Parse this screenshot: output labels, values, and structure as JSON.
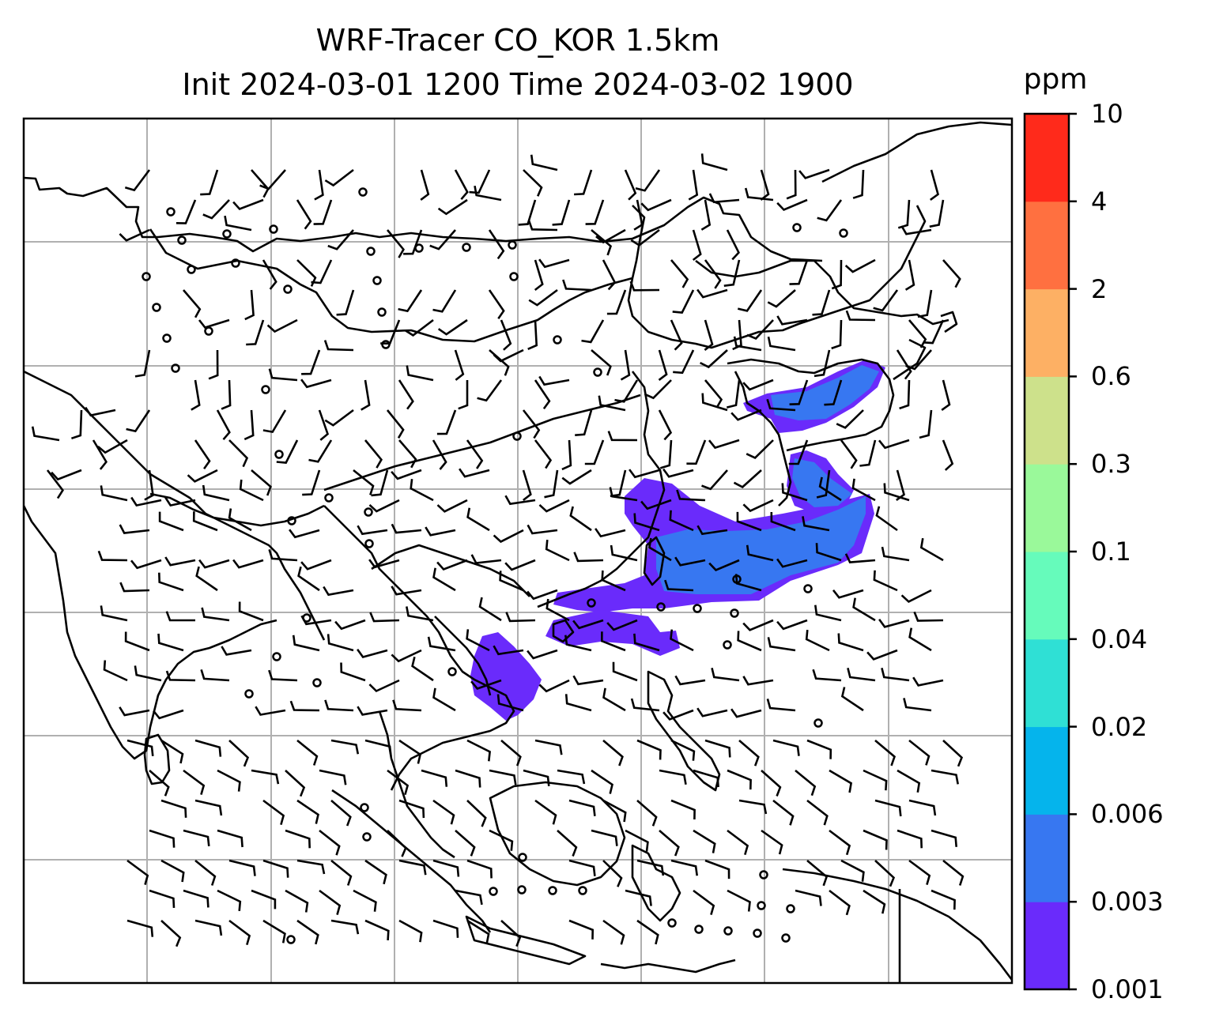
{
  "title": {
    "line1": "WRF-Tracer CO_KOR 1.5km",
    "line2": "Init 2024-03-01 1200 Time 2024-03-02 1900"
  },
  "colorbar": {
    "unit": "ppm",
    "levels": [
      "0.001",
      "0.003",
      "0.006",
      "0.02",
      "0.04",
      "0.1",
      "0.3",
      "0.6",
      "2",
      "4",
      "10"
    ],
    "colors": [
      "#6a2bfb",
      "#3777f1",
      "#05b4ec",
      "#2fe0d5",
      "#66fbbb",
      "#9af99a",
      "#cde18b",
      "#fdb064",
      "#ff7040",
      "#ff2a1b"
    ]
  },
  "map": {
    "gridline_color": "#b0b0b0",
    "coastline_color": "#000000",
    "barb_color": "#000000",
    "gridlines": "on"
  }
}
